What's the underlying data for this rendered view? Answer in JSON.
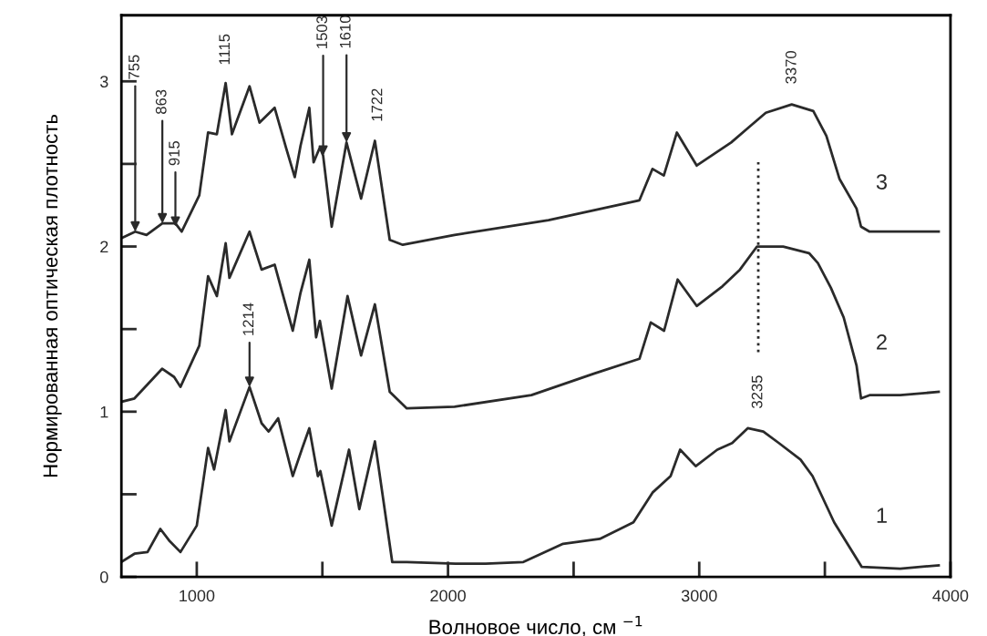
{
  "chart_data": {
    "type": "line",
    "xlabel": "Волновое число, см $^{−1}$",
    "ylabel": "Нормированная оптическая плотность",
    "xlim": [
      700,
      4000
    ],
    "xticks": [
      1000,
      2000,
      3000,
      4000
    ],
    "ylim": [
      0,
      3.4
    ],
    "yticks": [
      0,
      1,
      2,
      3
    ],
    "grid": false,
    "legend": false,
    "marker": "none",
    "line_style": "solid",
    "series": [
      {
        "name": "1",
        "color": "#2a2a2a",
        "x": [
          700,
          752,
          804,
          855,
          890,
          935,
          1000,
          1045,
          1069,
          1115,
          1130,
          1210,
          1258,
          1286,
          1324,
          1382,
          1420,
          1448,
          1482,
          1492,
          1537,
          1606,
          1647,
          1709,
          1778,
          1836,
          2030,
          2150,
          2300,
          2458,
          2604,
          2738,
          2814,
          2886,
          2924,
          2986,
          3072,
          3131,
          3193,
          3255,
          3317,
          3403,
          3451,
          3537,
          3647,
          3800,
          3953
        ],
        "values": [
          0.09,
          0.14,
          0.15,
          0.29,
          0.22,
          0.15,
          0.31,
          0.78,
          0.65,
          1.01,
          0.82,
          1.15,
          0.93,
          0.88,
          0.96,
          0.61,
          0.78,
          0.9,
          0.61,
          0.64,
          0.31,
          0.77,
          0.41,
          0.82,
          0.09,
          0.09,
          0.08,
          0.08,
          0.09,
          0.2,
          0.23,
          0.33,
          0.51,
          0.61,
          0.77,
          0.67,
          0.77,
          0.81,
          0.9,
          0.88,
          0.81,
          0.71,
          0.61,
          0.33,
          0.06,
          0.05,
          0.07
        ]
      },
      {
        "name": "2",
        "color": "#2a2a2a",
        "x": [
          700,
          752,
          862,
          910,
          935,
          1010,
          1045,
          1080,
          1115,
          1130,
          1210,
          1258,
          1310,
          1382,
          1413,
          1448,
          1475,
          1490,
          1537,
          1600,
          1654,
          1709,
          1768,
          1836,
          2026,
          2332,
          2580,
          2762,
          2807,
          2860,
          2914,
          2990,
          3093,
          3162,
          3230,
          3334,
          3437,
          3472,
          3524,
          3575,
          3626,
          3644,
          3678,
          3800,
          3953
        ],
        "values": [
          1.06,
          1.08,
          1.26,
          1.21,
          1.15,
          1.4,
          1.82,
          1.7,
          2.02,
          1.81,
          2.09,
          1.86,
          1.89,
          1.49,
          1.72,
          1.92,
          1.45,
          1.55,
          1.14,
          1.7,
          1.34,
          1.65,
          1.12,
          1.02,
          1.03,
          1.1,
          1.23,
          1.32,
          1.54,
          1.49,
          1.8,
          1.64,
          1.76,
          1.86,
          2.0,
          2.0,
          1.96,
          1.9,
          1.75,
          1.57,
          1.28,
          1.08,
          1.1,
          1.1,
          1.12
        ]
      },
      {
        "name": "3",
        "color": "#2a2a2a",
        "x": [
          700,
          755,
          800,
          863,
          915,
          940,
          1010,
          1045,
          1080,
          1115,
          1140,
          1210,
          1250,
          1310,
          1355,
          1390,
          1413,
          1448,
          1465,
          1490,
          1503,
          1537,
          1596,
          1654,
          1709,
          1768,
          1820,
          2026,
          2400,
          2762,
          2814,
          2859,
          2911,
          2990,
          3127,
          3196,
          3265,
          3368,
          3454,
          3506,
          3558,
          3626,
          3644,
          3678,
          3800,
          3953
        ],
        "values": [
          2.05,
          2.09,
          2.07,
          2.14,
          2.14,
          2.09,
          2.31,
          2.69,
          2.68,
          2.99,
          2.68,
          2.97,
          2.75,
          2.84,
          2.6,
          2.42,
          2.61,
          2.84,
          2.51,
          2.6,
          2.55,
          2.12,
          2.63,
          2.29,
          2.64,
          2.04,
          2.01,
          2.07,
          2.16,
          2.28,
          2.47,
          2.43,
          2.69,
          2.49,
          2.63,
          2.72,
          2.81,
          2.86,
          2.82,
          2.67,
          2.41,
          2.23,
          2.12,
          2.09,
          2.09,
          2.09
        ]
      },
      {
        "color": "#2a2a2a",
        "line_style": "dotted",
        "x": [
          3235,
          3235
        ],
        "values": [
          1.36,
          2.51
        ]
      }
    ],
    "annotations": [
      {
        "text": "755",
        "x": 755,
        "y": 2.09
      },
      {
        "text": "863",
        "x": 863,
        "y": 2.14
      },
      {
        "text": "915",
        "x": 915,
        "y": 2.12
      },
      {
        "text": "1115",
        "x": 1115,
        "y": 2.99
      },
      {
        "text": "1214",
        "x": 1210,
        "y": 1.15
      },
      {
        "text": "1503",
        "x": 1503,
        "y": 2.55
      },
      {
        "text": "1610",
        "x": 1596,
        "y": 2.63
      },
      {
        "text": "1722",
        "x": 1722,
        "y": 2.64
      },
      {
        "text": "3370",
        "x": 3370,
        "y": 2.86
      },
      {
        "text": "3235",
        "x": 3235,
        "y": 1.36
      }
    ]
  }
}
